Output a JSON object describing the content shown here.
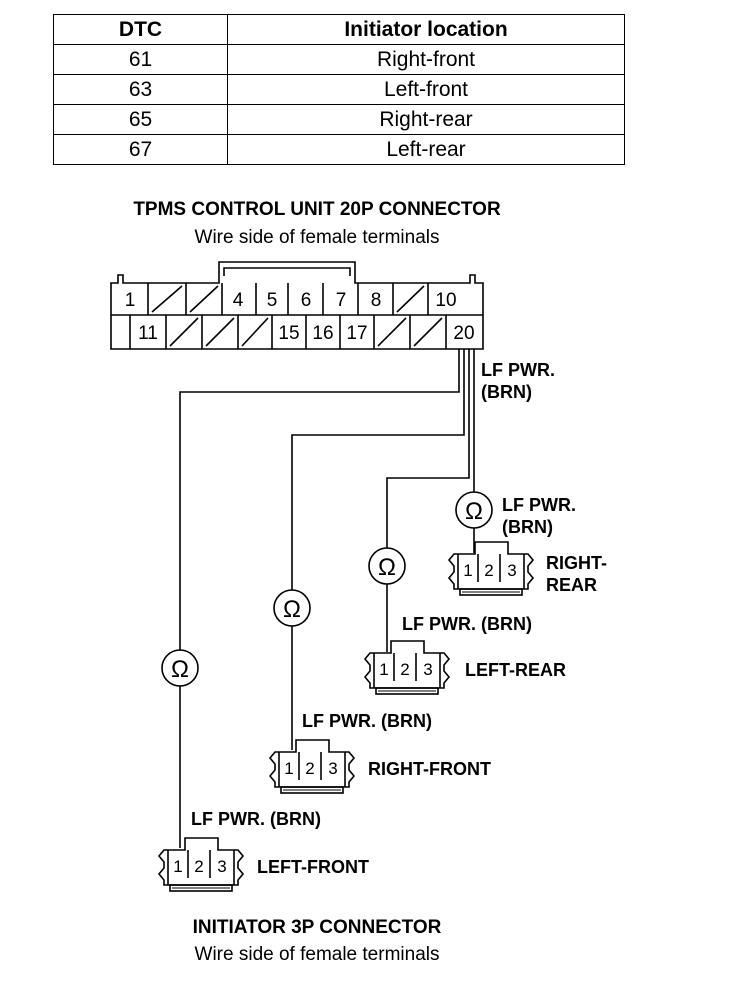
{
  "table": {
    "headers": [
      "DTC",
      "Initiator location"
    ],
    "rows": [
      [
        "61",
        "Right-front"
      ],
      [
        "63",
        "Left-front"
      ],
      [
        "65",
        "Right-rear"
      ],
      [
        "67",
        "Left-rear"
      ]
    ]
  },
  "control_unit": {
    "title": "TPMS CONTROL UNIT 20P CONNECTOR",
    "subtitle": "Wire side of female terminals",
    "top_row": [
      "1",
      "",
      "",
      "4",
      "5",
      "6",
      "7",
      "8",
      "",
      "10"
    ],
    "bottom_row": [
      "",
      "11",
      "",
      "",
      "",
      "15",
      "16",
      "17",
      "",
      "",
      "20"
    ]
  },
  "wire_label": "LF PWR. (BRN)",
  "wire_label_line1": "LF PWR.",
  "wire_label_line2": "(BRN)",
  "ohm_symbol": "Ω",
  "initiators": [
    {
      "location": "LEFT-FRONT",
      "pins": [
        "1",
        "2",
        "3"
      ]
    },
    {
      "location": "RIGHT-FRONT",
      "pins": [
        "1",
        "2",
        "3"
      ]
    },
    {
      "location": "LEFT-REAR",
      "pins": [
        "1",
        "2",
        "3"
      ]
    },
    {
      "location_line1": "RIGHT-",
      "location_line2": "REAR",
      "pins": [
        "1",
        "2",
        "3"
      ]
    }
  ],
  "initiator_connector": {
    "title": "INITIATOR 3P CONNECTOR",
    "subtitle": "Wire side of female terminals"
  }
}
